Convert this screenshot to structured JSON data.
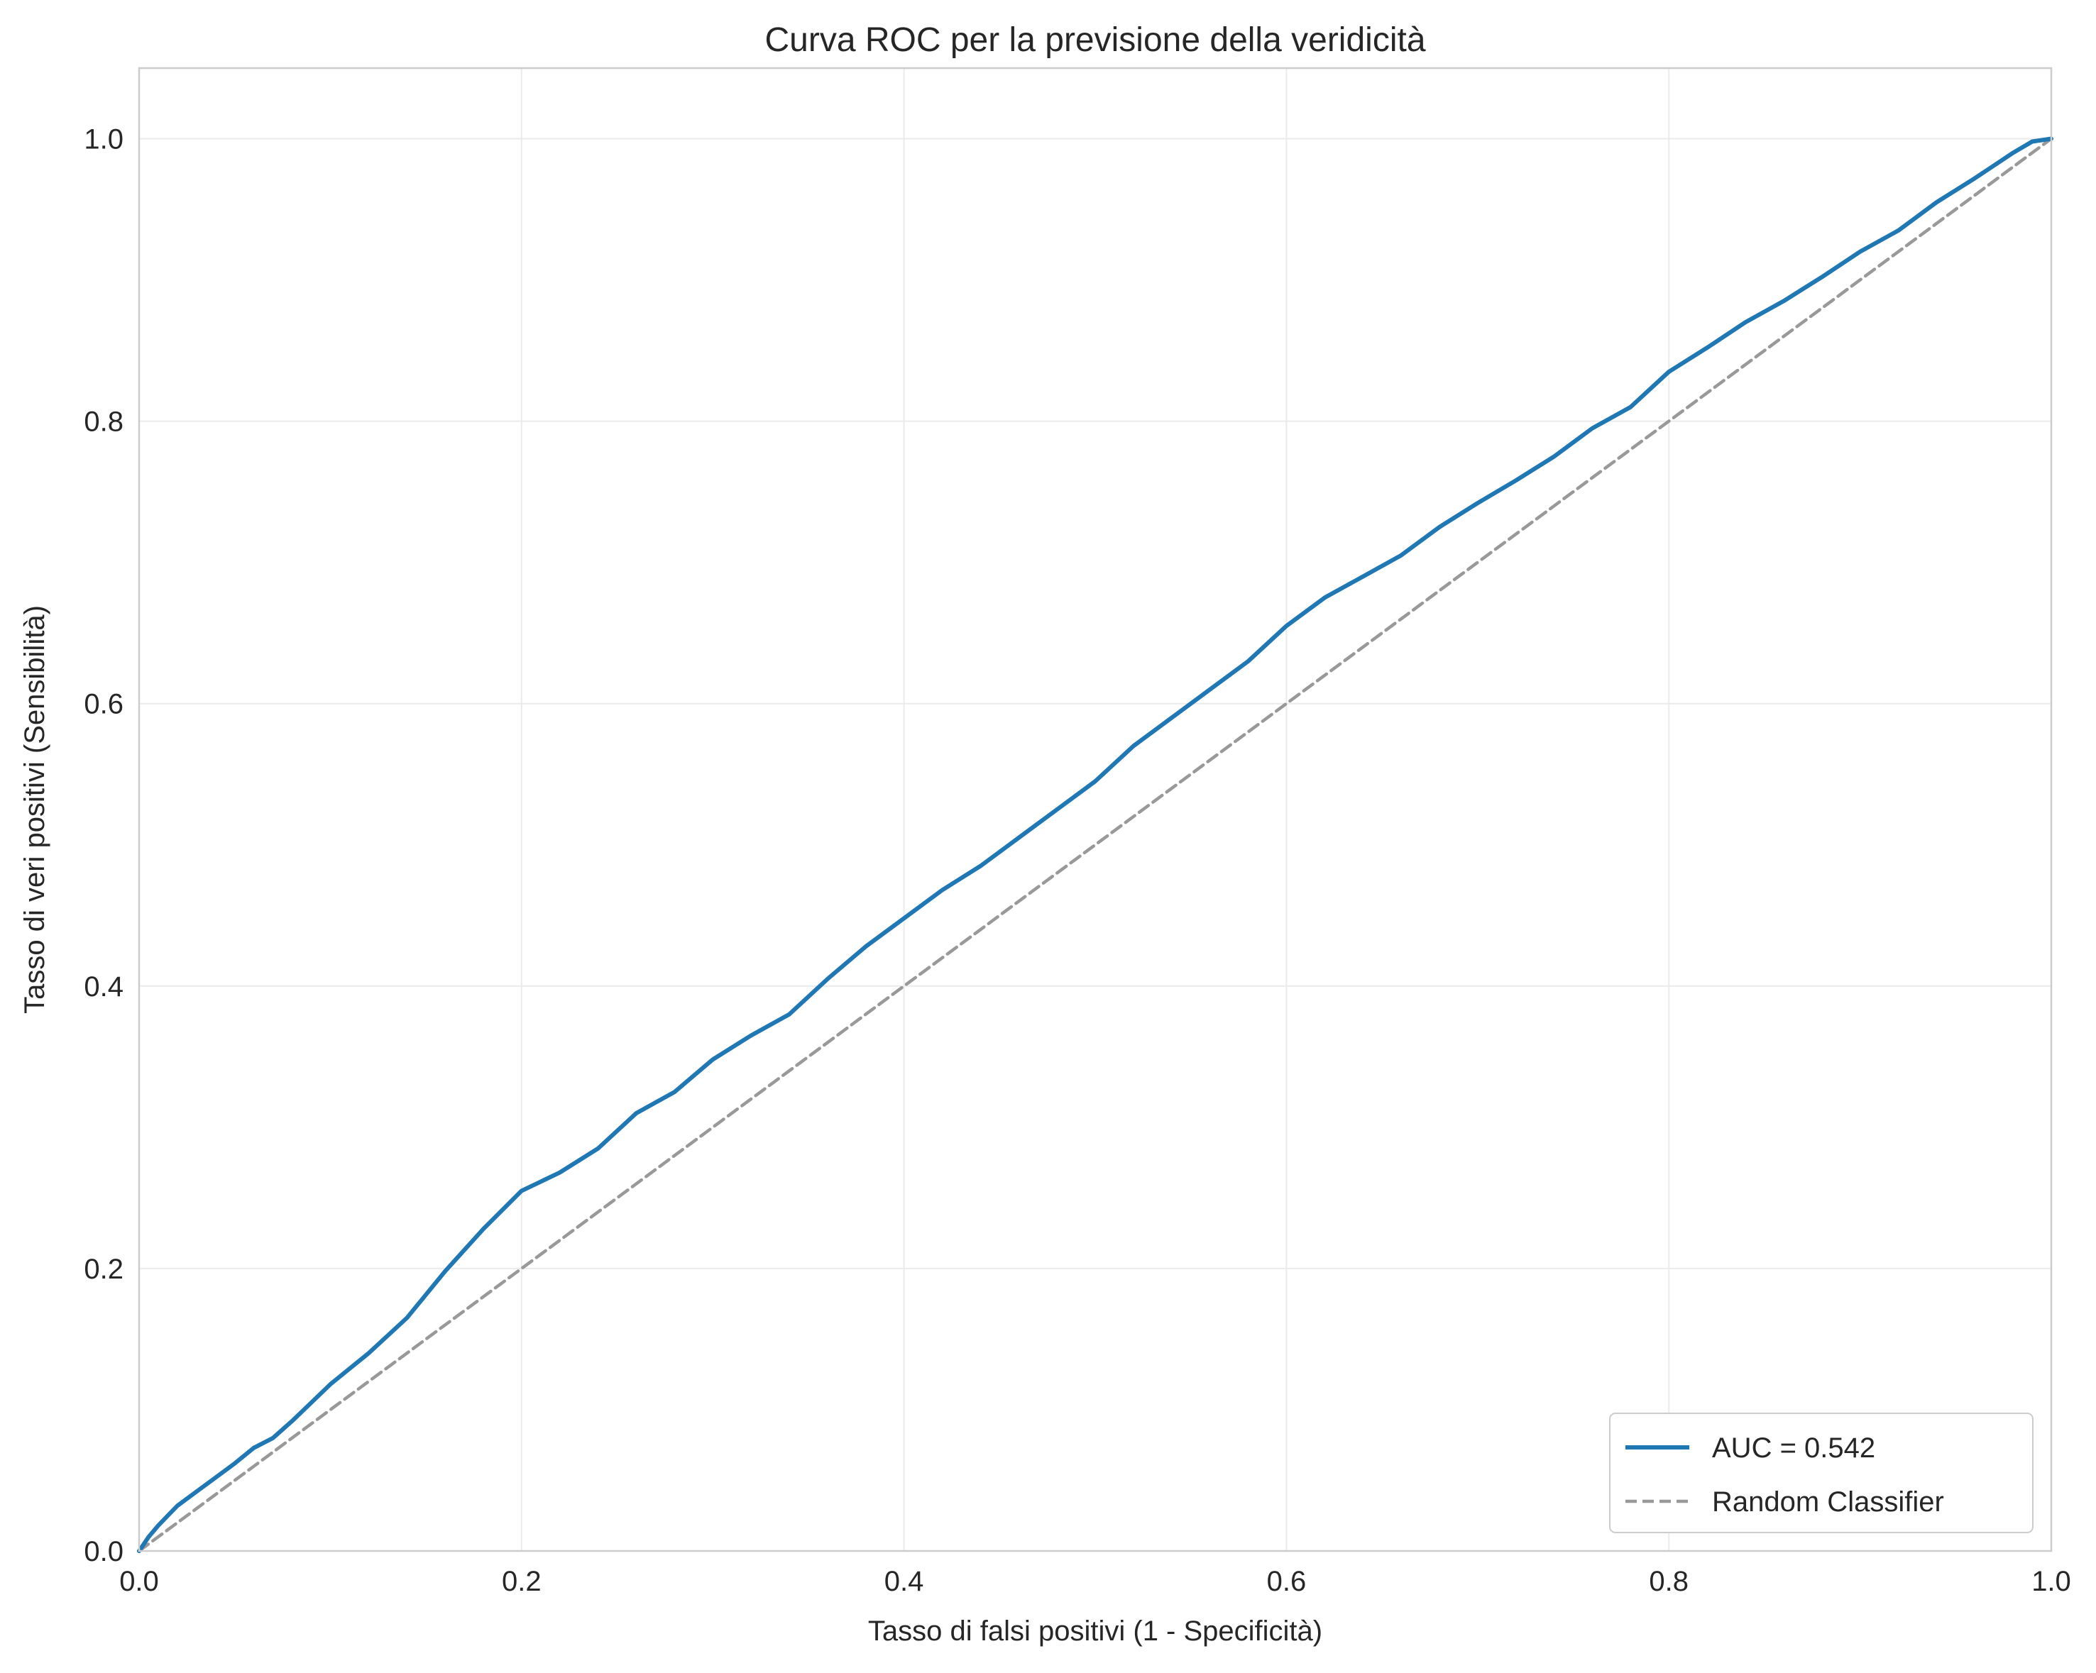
{
  "chart_data": {
    "type": "line",
    "title": "Curva ROC per la previsione della veridicità",
    "xlabel": "Tasso di falsi positivi (1 - Specificità)",
    "ylabel": "Tasso di veri positivi (Sensibilità)",
    "xlim": [
      0.0,
      1.0
    ],
    "ylim": [
      0.0,
      1.05
    ],
    "x_ticks": [
      "0.0",
      "0.2",
      "0.4",
      "0.6",
      "0.8",
      "1.0"
    ],
    "y_ticks": [
      "0.0",
      "0.2",
      "0.4",
      "0.6",
      "0.8",
      "1.0"
    ],
    "grid": true,
    "legend_position": "lower-right",
    "series": [
      {
        "name": "AUC = 0.542",
        "color": "#1f77b4",
        "style": "solid",
        "x": [
          0.0,
          0.005,
          0.01,
          0.015,
          0.02,
          0.03,
          0.04,
          0.05,
          0.06,
          0.07,
          0.08,
          0.09,
          0.1,
          0.12,
          0.14,
          0.16,
          0.18,
          0.2,
          0.22,
          0.24,
          0.26,
          0.28,
          0.3,
          0.32,
          0.34,
          0.36,
          0.38,
          0.4,
          0.42,
          0.44,
          0.46,
          0.48,
          0.5,
          0.52,
          0.54,
          0.56,
          0.58,
          0.6,
          0.62,
          0.64,
          0.66,
          0.68,
          0.7,
          0.72,
          0.74,
          0.76,
          0.78,
          0.8,
          0.82,
          0.84,
          0.86,
          0.88,
          0.9,
          0.92,
          0.94,
          0.96,
          0.98,
          0.99,
          1.0
        ],
        "y": [
          0.0,
          0.01,
          0.018,
          0.025,
          0.032,
          0.042,
          0.052,
          0.062,
          0.073,
          0.08,
          0.092,
          0.105,
          0.118,
          0.14,
          0.165,
          0.198,
          0.228,
          0.255,
          0.268,
          0.285,
          0.31,
          0.325,
          0.348,
          0.365,
          0.38,
          0.405,
          0.428,
          0.448,
          0.468,
          0.485,
          0.505,
          0.525,
          0.545,
          0.57,
          0.59,
          0.61,
          0.63,
          0.655,
          0.675,
          0.69,
          0.705,
          0.725,
          0.742,
          0.758,
          0.775,
          0.795,
          0.81,
          0.835,
          0.852,
          0.87,
          0.885,
          0.902,
          0.92,
          0.935,
          0.955,
          0.972,
          0.99,
          0.998,
          1.0
        ]
      },
      {
        "name": "Random Classifier",
        "color": "#999999",
        "style": "dashed",
        "x": [
          0.0,
          1.0
        ],
        "y": [
          0.0,
          1.0
        ]
      }
    ]
  }
}
